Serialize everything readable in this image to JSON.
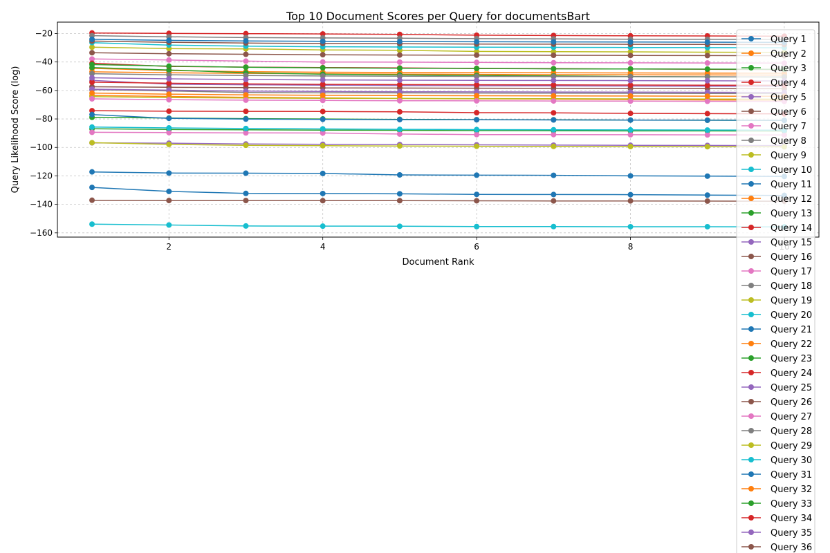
{
  "chart_data": {
    "type": "line",
    "title": "Top 10 Document Scores per Query for documentsBart",
    "xlabel": "Document Rank",
    "ylabel": "Query Likelihood Score (log)",
    "xlim": [
      0.55,
      10.45
    ],
    "ylim": [
      -163,
      -12
    ],
    "xticks": [
      2,
      4,
      6,
      8,
      10
    ],
    "yticks": [
      -20,
      -40,
      -60,
      -80,
      -100,
      -120,
      -140,
      -160
    ],
    "grid": true,
    "legend_position": "right",
    "x": [
      1,
      2,
      3,
      4,
      5,
      6,
      7,
      8,
      9,
      10
    ],
    "series": [
      {
        "name": "Query 1",
        "color": "#1f77b4",
        "values": [
          -117.2,
          -118.0,
          -118.1,
          -118.3,
          -119.3,
          -119.5,
          -119.6,
          -120.0,
          -120.2,
          -120.4
        ]
      },
      {
        "name": "Query 2",
        "color": "#ff7f0e",
        "values": [
          -63.5,
          -64.2,
          -64.8,
          -65.2,
          -65.6,
          -65.9,
          -66.1,
          -66.4,
          -66.6,
          -66.8
        ]
      },
      {
        "name": "Query 3",
        "color": "#2ca02c",
        "values": [
          -86.9,
          -87.4,
          -87.6,
          -87.9,
          -88.0,
          -88.2,
          -88.3,
          -88.4,
          -88.4,
          -88.5
        ]
      },
      {
        "name": "Query 4",
        "color": "#d62728",
        "values": [
          -19.6,
          -19.9,
          -20.1,
          -20.3,
          -20.6,
          -21.2,
          -21.4,
          -21.6,
          -21.7,
          -21.9
        ]
      },
      {
        "name": "Query 5",
        "color": "#9467bd",
        "values": [
          -96.8,
          -97.0,
          -97.6,
          -97.8,
          -98.0,
          -98.2,
          -98.4,
          -98.5,
          -98.6,
          -98.7
        ]
      },
      {
        "name": "Query 6",
        "color": "#8c564b",
        "values": [
          -137.1,
          -137.3,
          -137.3,
          -137.4,
          -137.4,
          -137.5,
          -137.6,
          -137.6,
          -137.7,
          -137.8
        ]
      },
      {
        "name": "Query 7",
        "color": "#e377c2",
        "values": [
          -89.4,
          -89.6,
          -89.8,
          -89.9,
          -90.6,
          -91.0,
          -91.0,
          -91.1,
          -91.2,
          -91.3
        ]
      },
      {
        "name": "Query 8",
        "color": "#7f7f7f",
        "values": [
          -21.5,
          -22.3,
          -22.9,
          -23.1,
          -23.3,
          -23.6,
          -23.8,
          -24.0,
          -24.1,
          -24.2
        ]
      },
      {
        "name": "Query 9",
        "color": "#bcbd22",
        "values": [
          -29.6,
          -30.6,
          -30.8,
          -31.5,
          -31.8,
          -32.6,
          -32.8,
          -32.9,
          -33.1,
          -33.2
        ]
      },
      {
        "name": "Query 10",
        "color": "#17becf",
        "values": [
          -153.9,
          -154.5,
          -155.2,
          -155.3,
          -155.4,
          -155.6,
          -155.6,
          -155.7,
          -155.7,
          -155.8
        ]
      },
      {
        "name": "Query 11",
        "color": "#1f77b4",
        "values": [
          -128.1,
          -130.9,
          -132.3,
          -132.4,
          -132.6,
          -133.0,
          -133.1,
          -133.2,
          -133.5,
          -133.7
        ]
      },
      {
        "name": "Query 12",
        "color": "#ff7f0e",
        "values": [
          -46.9,
          -47.6,
          -48.0,
          -48.3,
          -48.5,
          -48.7,
          -48.9,
          -49.0,
          -49.1,
          -49.2
        ]
      },
      {
        "name": "Query 13",
        "color": "#2ca02c",
        "values": [
          -78.9,
          -79.4,
          -79.8,
          -80.0,
          -80.3,
          -80.5,
          -80.6,
          -80.8,
          -80.9,
          -81.0
        ]
      },
      {
        "name": "Query 14",
        "color": "#d62728",
        "values": [
          -74.2,
          -74.6,
          -74.7,
          -74.8,
          -75.0,
          -75.6,
          -75.7,
          -76.1,
          -76.3,
          -76.5
        ]
      },
      {
        "name": "Query 15",
        "color": "#9467bd",
        "values": [
          -52.9,
          -55.6,
          -56.0,
          -56.3,
          -56.5,
          -56.7,
          -56.8,
          -56.9,
          -57.0,
          -57.1
        ]
      },
      {
        "name": "Query 16",
        "color": "#8c564b",
        "values": [
          -57.4,
          -57.8,
          -58.0,
          -58.2,
          -58.3,
          -58.4,
          -58.5,
          -58.6,
          -58.7,
          -58.8
        ]
      },
      {
        "name": "Query 17",
        "color": "#e377c2",
        "values": [
          -37.9,
          -38.6,
          -39.4,
          -40.0,
          -40.1,
          -40.3,
          -40.5,
          -40.6,
          -40.7,
          -40.8
        ]
      },
      {
        "name": "Query 18",
        "color": "#7f7f7f",
        "values": [
          -59.5,
          -60.3,
          -61.4,
          -61.6,
          -61.7,
          -61.8,
          -61.9,
          -62.0,
          -62.1,
          -62.2
        ]
      },
      {
        "name": "Query 19",
        "color": "#bcbd22",
        "values": [
          -64.3,
          -65.0,
          -65.3,
          -65.5,
          -65.6,
          -65.7,
          -65.8,
          -65.9,
          -66.0,
          -66.1
        ]
      },
      {
        "name": "Query 20",
        "color": "#17becf",
        "values": [
          -26.4,
          -28.1,
          -28.9,
          -29.3,
          -29.5,
          -29.6,
          -29.7,
          -29.8,
          -29.9,
          -30.0
        ]
      },
      {
        "name": "Query 21",
        "color": "#1f77b4",
        "values": [
          -76.9,
          -79.6,
          -80.1,
          -80.3,
          -80.5,
          -80.6,
          -80.7,
          -80.8,
          -80.9,
          -81.0
        ]
      },
      {
        "name": "Query 22",
        "color": "#ff7f0e",
        "values": [
          -44.5,
          -46.0,
          -46.8,
          -47.2,
          -47.4,
          -47.5,
          -47.6,
          -47.7,
          -47.8,
          -47.9
        ]
      },
      {
        "name": "Query 23",
        "color": "#2ca02c",
        "values": [
          -43.9,
          -45.6,
          -47.6,
          -48.6,
          -49.1,
          -49.4,
          -49.8,
          -50.2,
          -50.4,
          -50.6
        ]
      },
      {
        "name": "Query 24",
        "color": "#d62728",
        "values": [
          -40.9,
          -43.1,
          -43.6,
          -43.9,
          -44.2,
          -44.5,
          -44.7,
          -44.9,
          -45.1,
          -45.3
        ]
      },
      {
        "name": "Query 25",
        "color": "#9467bd",
        "values": [
          -59.1,
          -59.8,
          -60.4,
          -60.7,
          -60.9,
          -61.0,
          -61.1,
          -61.2,
          -61.3,
          -61.4
        ]
      },
      {
        "name": "Query 26",
        "color": "#8c564b",
        "values": [
          -25.3,
          -26.2,
          -26.7,
          -27.0,
          -27.2,
          -27.4,
          -27.5,
          -27.6,
          -27.7,
          -27.8
        ]
      },
      {
        "name": "Query 27",
        "color": "#e377c2",
        "values": [
          -65.9,
          -66.5,
          -66.8,
          -67.0,
          -67.2,
          -67.3,
          -67.4,
          -67.5,
          -67.6,
          -67.7
        ]
      },
      {
        "name": "Query 28",
        "color": "#7f7f7f",
        "values": [
          -48.2,
          -49.0,
          -49.5,
          -49.8,
          -50.0,
          -50.1,
          -50.2,
          -50.3,
          -50.4,
          -50.5
        ]
      },
      {
        "name": "Query 29",
        "color": "#bcbd22",
        "values": [
          -96.7,
          -97.9,
          -98.5,
          -98.8,
          -99.0,
          -99.2,
          -99.3,
          -99.4,
          -99.5,
          -99.6
        ]
      },
      {
        "name": "Query 30",
        "color": "#17becf",
        "values": [
          -85.7,
          -86.3,
          -86.7,
          -87.0,
          -87.3,
          -87.5,
          -87.6,
          -87.7,
          -87.8,
          -87.9
        ]
      },
      {
        "name": "Query 31",
        "color": "#1f77b4",
        "values": [
          -24.1,
          -24.8,
          -25.2,
          -25.5,
          -25.7,
          -25.8,
          -25.9,
          -26.0,
          -26.1,
          -26.2
        ]
      },
      {
        "name": "Query 32",
        "color": "#ff7f0e",
        "values": [
          -61.8,
          -62.6,
          -63.1,
          -63.4,
          -63.6,
          -63.7,
          -63.8,
          -63.9,
          -64.0,
          -64.1
        ]
      },
      {
        "name": "Query 33",
        "color": "#2ca02c",
        "values": [
          -41.8,
          -42.9,
          -43.7,
          -44.1,
          -44.4,
          -44.6,
          -44.8,
          -44.9,
          -45.0,
          -45.1
        ]
      },
      {
        "name": "Query 34",
        "color": "#d62728",
        "values": [
          -54.2,
          -54.9,
          -55.4,
          -55.7,
          -55.9,
          -56.0,
          -56.1,
          -56.2,
          -56.3,
          -56.4
        ]
      },
      {
        "name": "Query 35",
        "color": "#9467bd",
        "values": [
          -51.1,
          -51.8,
          -52.3,
          -52.6,
          -52.8,
          -52.9,
          -53.0,
          -53.1,
          -53.2,
          -53.3
        ]
      },
      {
        "name": "Query 36",
        "color": "#8c564b",
        "values": [
          -33.5,
          -34.2,
          -34.6,
          -34.9,
          -35.1,
          -35.2,
          -35.3,
          -35.4,
          -35.5,
          -35.6
        ]
      }
    ]
  }
}
